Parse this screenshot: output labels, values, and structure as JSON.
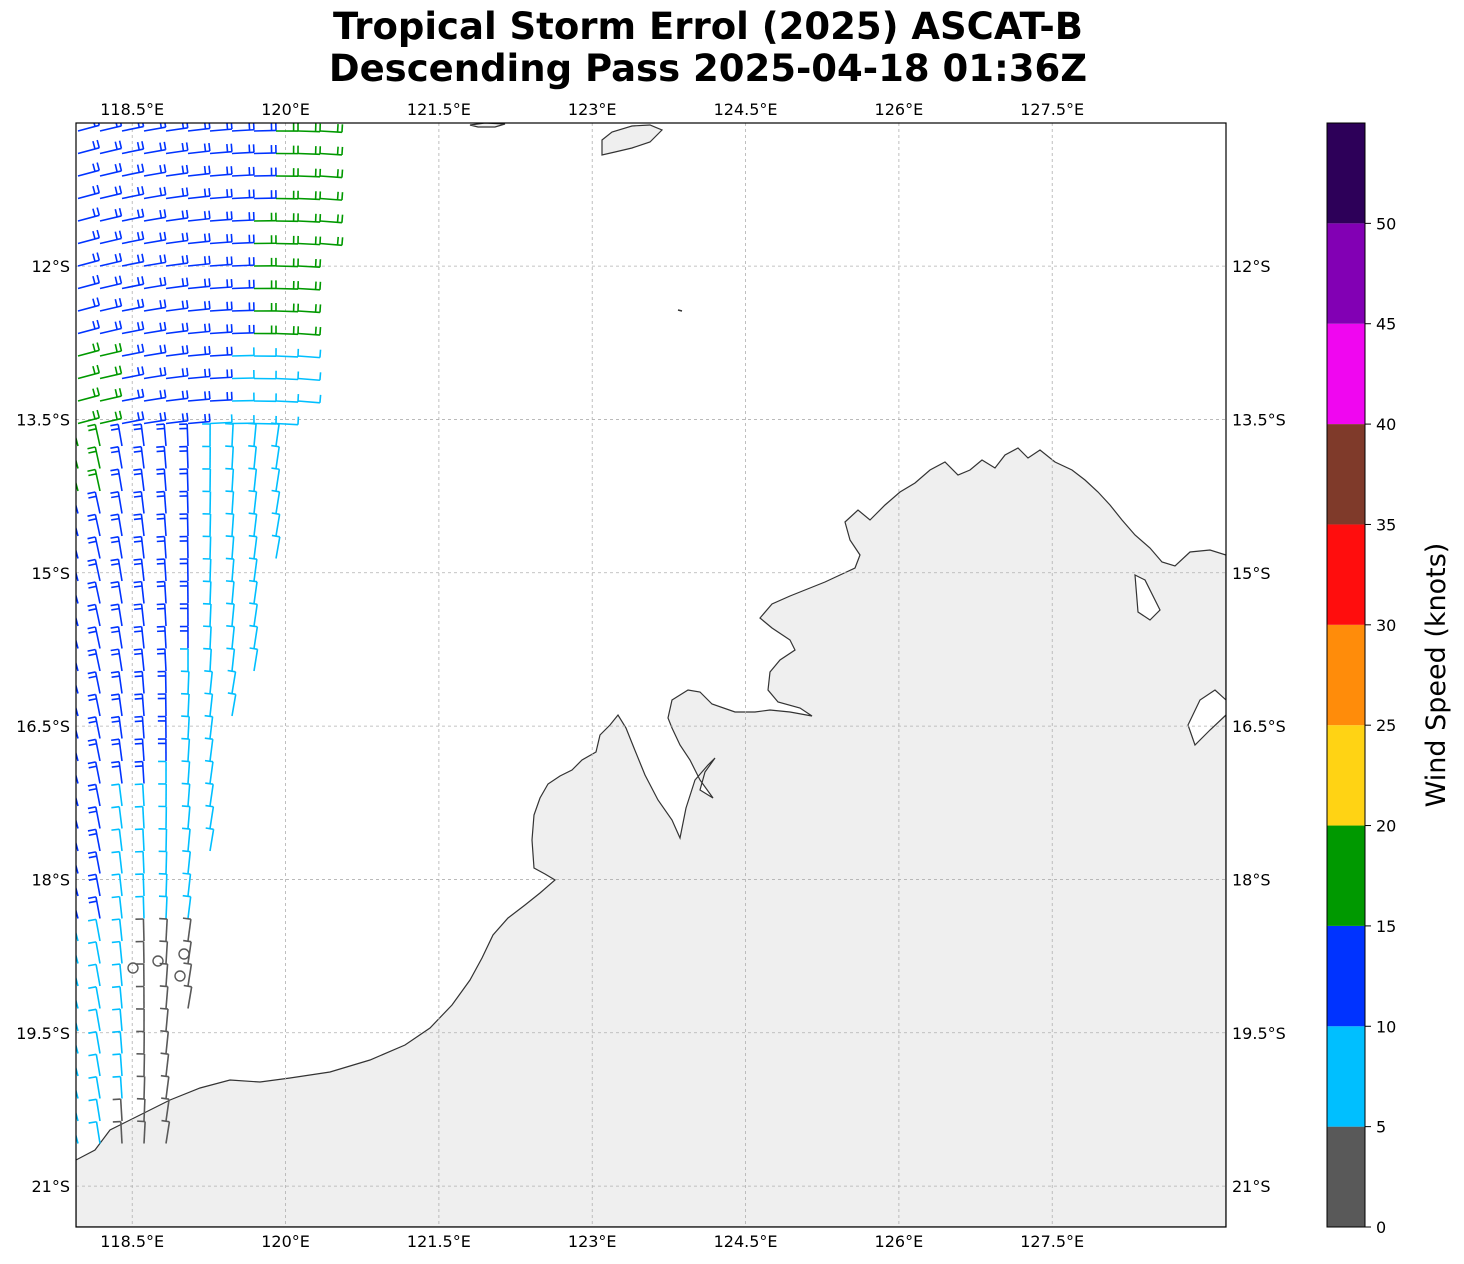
{
  "title": {
    "line1": "Tropical Storm Errol (2025) ASCAT-B",
    "line2": "Descending Pass 2025-04-18 01:36Z"
  },
  "map": {
    "lon_range": [
      117.95,
      129.2
    ],
    "lat_range": [
      -21.4,
      -10.6
    ],
    "gridlines": true,
    "lon_ticks": [
      118.5,
      120,
      121.5,
      123,
      124.5,
      126,
      127.5
    ],
    "lon_labels": [
      "118.5°E",
      "120°E",
      "121.5°E",
      "123°E",
      "124.5°E",
      "126°E",
      "127.5°E"
    ],
    "lat_ticks": [
      -12,
      -13.5,
      -15,
      -16.5,
      -18,
      -19.5,
      -21
    ],
    "lat_labels": [
      "12°S",
      "13.5°S",
      "15°S",
      "16.5°S",
      "18°S",
      "19.5°S",
      "21°S"
    ],
    "land_color": "#efefef",
    "coast_color": "#333333"
  },
  "colorbar": {
    "label": "Wind Speed (knots)",
    "tick_values": [
      0,
      5,
      10,
      15,
      20,
      25,
      30,
      35,
      40,
      45,
      50
    ],
    "tick_labels": [
      "0",
      "5",
      "10",
      "15",
      "20",
      "25",
      "30",
      "35",
      "40",
      "45",
      "50"
    ],
    "range": [
      0,
      55
    ],
    "bins": [
      {
        "from": 0,
        "to": 5,
        "color": "#595959"
      },
      {
        "from": 5,
        "to": 10,
        "color": "#00bfff"
      },
      {
        "from": 10,
        "to": 15,
        "color": "#0033ff"
      },
      {
        "from": 15,
        "to": 20,
        "color": "#009900"
      },
      {
        "from": 20,
        "to": 25,
        "color": "#ffd314"
      },
      {
        "from": 25,
        "to": 30,
        "color": "#ff8c0a"
      },
      {
        "from": 30,
        "to": 35,
        "color": "#ff0d0d"
      },
      {
        "from": 35,
        "to": 40,
        "color": "#7f3a2a"
      },
      {
        "from": 40,
        "to": 45,
        "color": "#f006f0"
      },
      {
        "from": 45,
        "to": 50,
        "color": "#8200b4"
      },
      {
        "from": 50,
        "to": 55,
        "color": "#2d0059"
      }
    ]
  }
}
